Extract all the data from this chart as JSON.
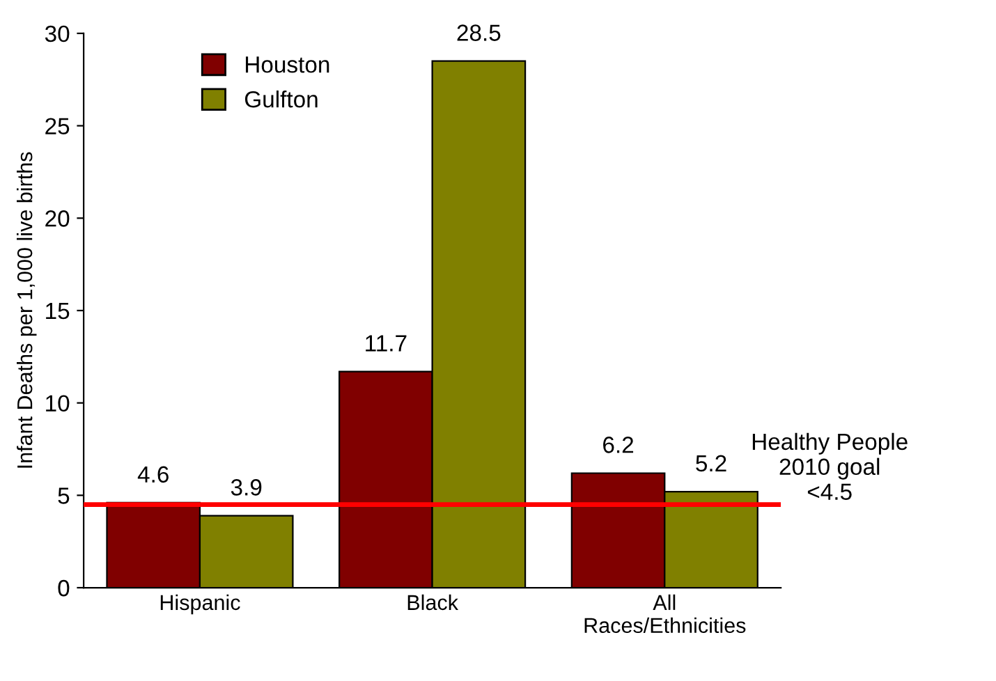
{
  "chart_data": {
    "type": "bar",
    "ylabel": "Infant Deaths per 1,000 live births",
    "categories": [
      "Hispanic",
      "Black",
      "All\nRaces/Ethnicities"
    ],
    "series": [
      {
        "name": "Houston",
        "color": "#800000",
        "values": [
          4.6,
          11.7,
          6.2
        ]
      },
      {
        "name": "Gulfton",
        "color": "#808000",
        "values": [
          3.9,
          28.5,
          5.2
        ]
      }
    ],
    "ylim": [
      0,
      30
    ],
    "yticks": [
      0,
      5,
      10,
      15,
      20,
      25,
      30
    ],
    "grid": false,
    "legend": "top left",
    "data_labels": true,
    "ref_lines": [
      {
        "axis": "y",
        "value": 4.5,
        "label": "Healthy People\n2010 goal\n<4.5",
        "color": "#ff0000"
      }
    ]
  }
}
